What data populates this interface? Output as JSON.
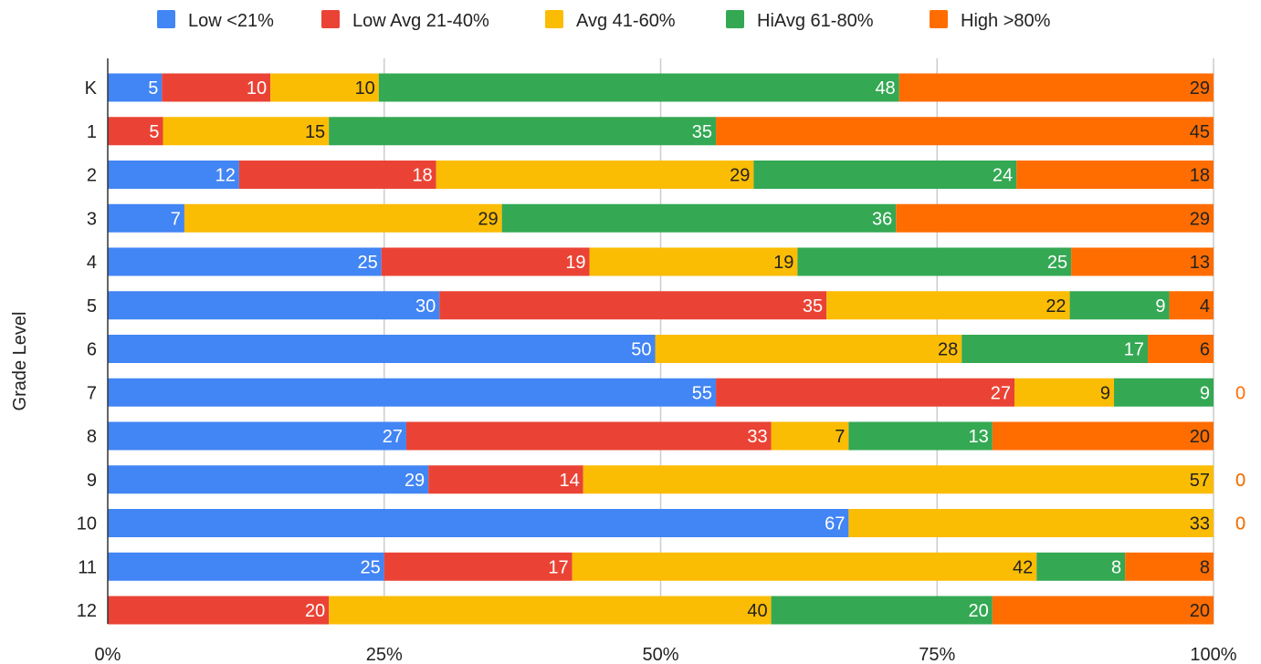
{
  "chart_data": {
    "type": "bar",
    "orientation": "horizontal",
    "stacked": "percent",
    "categories": [
      "K",
      "1",
      "2",
      "3",
      "4",
      "5",
      "6",
      "7",
      "8",
      "9",
      "10",
      "11",
      "12"
    ],
    "series": [
      {
        "name": "Low <21%",
        "color": "#4285F4",
        "values": [
          5,
          0,
          12,
          7,
          25,
          30,
          50,
          55,
          27,
          29,
          67,
          25,
          0
        ]
      },
      {
        "name": "Low Avg 21-40%",
        "color": "#EA4335",
        "values": [
          10,
          5,
          18,
          0,
          19,
          35,
          0,
          27,
          33,
          14,
          0,
          17,
          20
        ]
      },
      {
        "name": "Avg 41-60%",
        "color": "#FBBC04",
        "values": [
          10,
          15,
          29,
          29,
          19,
          22,
          28,
          9,
          7,
          57,
          33,
          42,
          40
        ]
      },
      {
        "name": "HiAvg 61-80%",
        "color": "#34A853",
        "values": [
          48,
          35,
          24,
          36,
          25,
          9,
          17,
          9,
          13,
          0,
          0,
          8,
          20
        ]
      },
      {
        "name": "High >80%",
        "color": "#FF6D01",
        "values": [
          29,
          45,
          18,
          29,
          13,
          4,
          6,
          0,
          20,
          0,
          0,
          8,
          20
        ]
      }
    ],
    "x_ticks": [
      "0%",
      "25%",
      "50%",
      "75%",
      "100%"
    ],
    "xlim": [
      0,
      100
    ],
    "ylabel": "Grade Level",
    "xlabel": "",
    "title": "",
    "legend": "top",
    "grid": true
  }
}
